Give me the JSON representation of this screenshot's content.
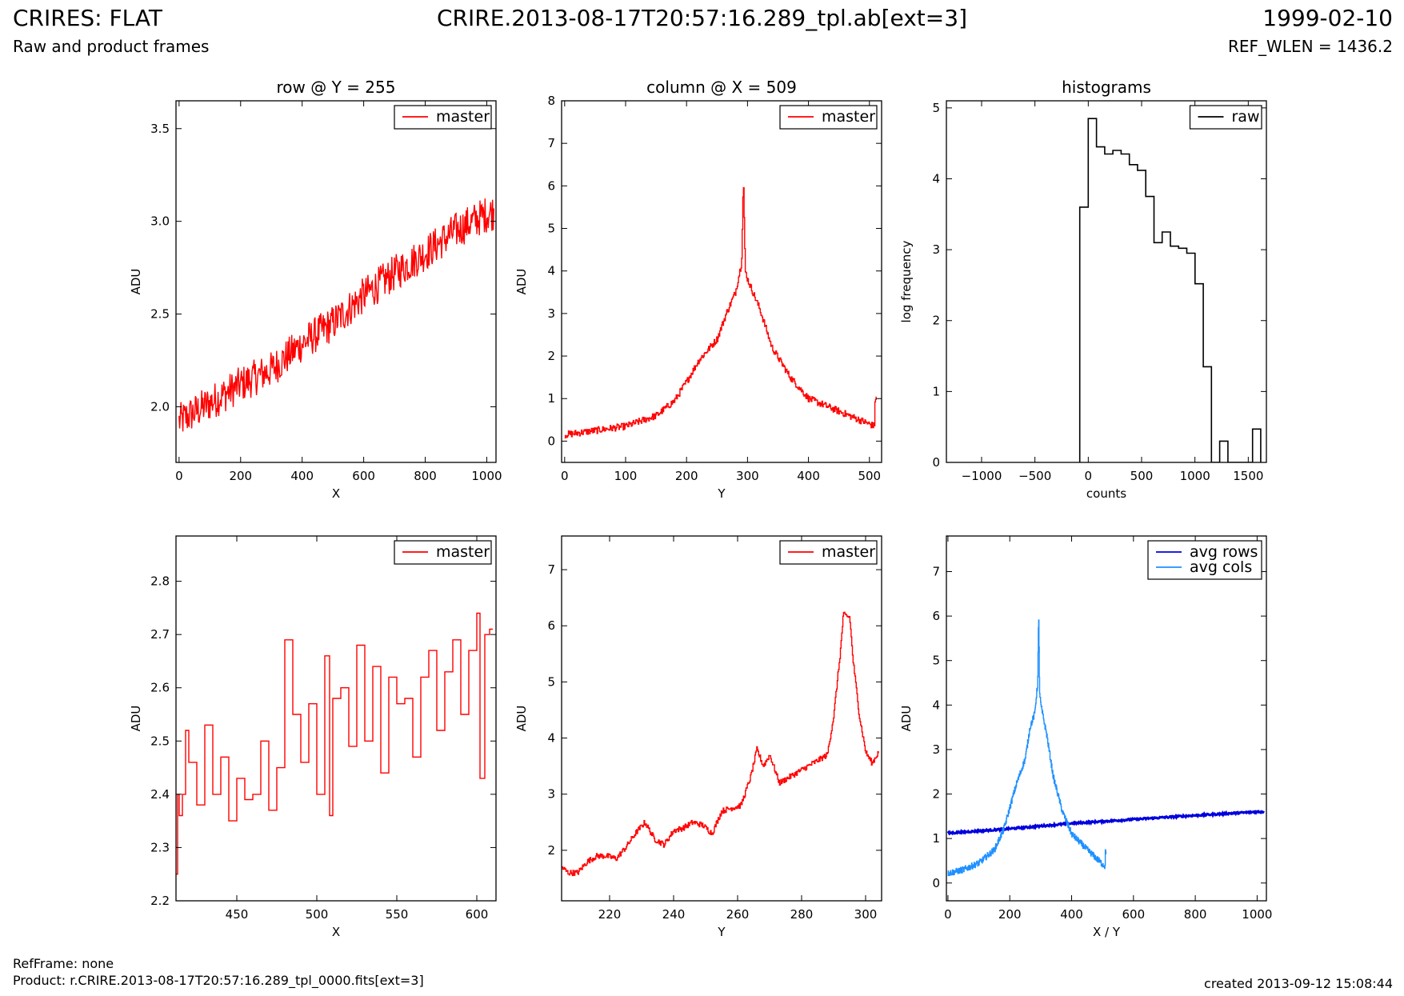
{
  "header": {
    "title": "CRIRES: FLAT",
    "subtitle": "Raw and product frames",
    "file": "CRIRE.2013-08-17T20:57:16.289_tpl.ab[ext=3]",
    "date": "1999-02-10",
    "ref_wlen": "REF_WLEN = 1436.2"
  },
  "footer": {
    "ref_frame": "RefFrame: none",
    "product": "Product: r.CRIRE.2013-08-17T20:57:16.289_tpl_0000.fits[ext=3]",
    "created": "created 2013-09-12 15:08:44"
  },
  "chart_data": [
    {
      "type": "line",
      "title": "row @ Y = 255",
      "xlabel": "X",
      "ylabel": "ADU",
      "xlim": [
        -10,
        1030
      ],
      "ylim": [
        1.7,
        3.65
      ],
      "xticks": [
        0,
        200,
        400,
        600,
        800,
        1000
      ],
      "yticks": [
        2.0,
        2.5,
        3.0,
        3.5
      ],
      "yformat": 1,
      "legend": {
        "position": "top-right",
        "entries": [
          {
            "label": "master",
            "color": "#ff0000"
          }
        ]
      },
      "series": [
        {
          "name": "master",
          "color": "#ff0000",
          "style": "noisy-line",
          "x": [
            0,
            100,
            200,
            300,
            400,
            500,
            600,
            700,
            800,
            900,
            1000,
            1023
          ],
          "values": [
            1.92,
            2.02,
            2.12,
            2.2,
            2.34,
            2.45,
            2.6,
            2.72,
            2.83,
            2.95,
            3.04,
            3.05
          ],
          "noise": 0.1
        }
      ]
    },
    {
      "type": "line",
      "title": "column @ X = 509",
      "xlabel": "Y",
      "ylabel": "ADU",
      "xlim": [
        -5,
        520
      ],
      "ylim": [
        -0.5,
        8
      ],
      "xticks": [
        0,
        100,
        200,
        300,
        400,
        500
      ],
      "yticks": [
        0,
        1,
        2,
        3,
        4,
        5,
        6,
        7,
        8
      ],
      "yformat": 0,
      "legend": {
        "position": "top-right",
        "entries": [
          {
            "label": "master",
            "color": "#ff0000"
          }
        ]
      },
      "series": [
        {
          "name": "master",
          "color": "#ff0000",
          "style": "step",
          "x": [
            0,
            50,
            100,
            150,
            180,
            200,
            220,
            250,
            265,
            280,
            290,
            293,
            296,
            300,
            320,
            340,
            370,
            400,
            450,
            500,
            508,
            509,
            511
          ],
          "values": [
            0.15,
            0.25,
            0.35,
            0.6,
            0.95,
            1.4,
            1.9,
            2.4,
            3.0,
            3.5,
            4.2,
            6.2,
            4.0,
            3.8,
            3.1,
            2.2,
            1.5,
            1.0,
            0.7,
            0.4,
            0.35,
            1.0,
            1.0
          ],
          "noise": 0.08
        }
      ]
    },
    {
      "type": "bar",
      "title": "histograms",
      "xlabel": "counts",
      "ylabel": "log frequency",
      "xlim": [
        -1330,
        1670
      ],
      "ylim": [
        0,
        5.1
      ],
      "xticks": [
        -1000,
        -500,
        0,
        500,
        1000,
        1500
      ],
      "yticks": [
        0,
        1,
        2,
        3,
        4,
        5
      ],
      "yformat": 0,
      "legend": {
        "position": "top-right",
        "entries": [
          {
            "label": "raw",
            "color": "#000000"
          }
        ]
      },
      "series": [
        {
          "name": "raw",
          "color": "#000000",
          "style": "hist",
          "edges": [
            -80,
            0,
            77,
            154,
            231,
            308,
            385,
            462,
            539,
            616,
            693,
            770,
            847,
            924,
            1001,
            1078,
            1155,
            1232,
            1309,
            1386,
            1463,
            1540,
            1617
          ],
          "values": [
            3.6,
            4.85,
            4.45,
            4.35,
            4.4,
            4.35,
            4.2,
            4.12,
            3.75,
            3.1,
            3.25,
            3.05,
            3.02,
            2.95,
            2.52,
            1.35,
            0,
            0.3,
            0,
            0,
            0,
            0.47
          ]
        }
      ]
    },
    {
      "type": "line",
      "title": "",
      "xlabel": "X",
      "ylabel": "ADU",
      "xlim": [
        412,
        612
      ],
      "ylim": [
        2.2,
        2.885
      ],
      "xticks": [
        450,
        500,
        550,
        600
      ],
      "yticks": [
        2.2,
        2.3,
        2.4,
        2.5,
        2.6,
        2.7,
        2.8
      ],
      "yformat": 1,
      "legend": {
        "position": "top-right",
        "entries": [
          {
            "label": "master",
            "color": "#ff0000"
          }
        ]
      },
      "series": [
        {
          "name": "master",
          "color": "#ff0000",
          "style": "step",
          "x": [
            412,
            413,
            414,
            416,
            418,
            420,
            425,
            430,
            435,
            440,
            445,
            450,
            455,
            460,
            465,
            470,
            475,
            480,
            485,
            490,
            495,
            500,
            505,
            508,
            510,
            515,
            520,
            525,
            530,
            535,
            540,
            545,
            550,
            555,
            560,
            565,
            570,
            575,
            580,
            585,
            590,
            595,
            600,
            602,
            605,
            608,
            610
          ],
          "values": [
            2.25,
            2.4,
            2.36,
            2.4,
            2.52,
            2.46,
            2.38,
            2.53,
            2.4,
            2.47,
            2.35,
            2.43,
            2.39,
            2.4,
            2.5,
            2.37,
            2.45,
            2.69,
            2.55,
            2.46,
            2.57,
            2.4,
            2.66,
            2.36,
            2.58,
            2.6,
            2.49,
            2.68,
            2.5,
            2.64,
            2.44,
            2.62,
            2.57,
            2.58,
            2.47,
            2.62,
            2.67,
            2.52,
            2.63,
            2.69,
            2.55,
            2.67,
            2.74,
            2.43,
            2.7,
            2.71,
            2.71
          ],
          "noise": 0
        }
      ]
    },
    {
      "type": "line",
      "title": "",
      "xlabel": "Y",
      "ylabel": "ADU",
      "xlim": [
        205,
        305
      ],
      "ylim": [
        1.1,
        7.6
      ],
      "xticks": [
        220,
        240,
        260,
        280,
        300
      ],
      "yticks": [
        2,
        3,
        4,
        5,
        6,
        7
      ],
      "yformat": 0,
      "legend": {
        "position": "top-right",
        "entries": [
          {
            "label": "master",
            "color": "#ff0000"
          }
        ]
      },
      "series": [
        {
          "name": "master",
          "color": "#ff0000",
          "style": "step",
          "x": [
            205,
            207,
            210,
            213,
            216,
            219,
            222,
            225,
            228,
            231,
            234,
            237,
            240,
            243,
            246,
            249,
            252,
            255,
            258,
            261,
            264,
            266,
            268,
            270,
            273,
            276,
            279,
            282,
            285,
            288,
            290,
            292,
            293,
            295,
            296,
            298,
            300,
            302,
            304
          ],
          "values": [
            1.7,
            1.6,
            1.6,
            1.8,
            1.9,
            1.9,
            1.85,
            2.05,
            2.3,
            2.5,
            2.2,
            2.1,
            2.35,
            2.4,
            2.5,
            2.45,
            2.3,
            2.7,
            2.75,
            2.8,
            3.3,
            3.8,
            3.5,
            3.7,
            3.2,
            3.3,
            3.4,
            3.5,
            3.6,
            3.7,
            4.4,
            5.5,
            6.2,
            6.15,
            5.4,
            4.4,
            3.75,
            3.55,
            3.75
          ],
          "noise": 0.05
        }
      ]
    },
    {
      "type": "line",
      "title": "",
      "xlabel": "X / Y",
      "ylabel": "ADU",
      "xlim": [
        -5,
        1030
      ],
      "ylim": [
        -0.4,
        7.8
      ],
      "xticks": [
        0,
        200,
        400,
        600,
        800,
        1000
      ],
      "yticks": [
        0,
        1,
        2,
        3,
        4,
        5,
        6,
        7
      ],
      "yformat": 0,
      "legend": {
        "position": "top-right",
        "entries": [
          {
            "label": "avg rows",
            "color": "#0000dd"
          },
          {
            "label": "avg cols",
            "color": "#1e90ff"
          }
        ]
      },
      "series": [
        {
          "name": "avg rows",
          "color": "#0000dd",
          "style": "noisy-line",
          "width": 3,
          "x": [
            0,
            200,
            400,
            600,
            800,
            1000,
            1023
          ],
          "values": [
            1.12,
            1.22,
            1.34,
            1.43,
            1.52,
            1.6,
            1.6
          ],
          "noise": 0.02
        },
        {
          "name": "avg cols",
          "color": "#1e90ff",
          "style": "step",
          "x": [
            0,
            50,
            100,
            150,
            180,
            200,
            220,
            250,
            265,
            280,
            290,
            293,
            296,
            300,
            320,
            340,
            370,
            400,
            450,
            500,
            508,
            509,
            511
          ],
          "values": [
            0.22,
            0.3,
            0.45,
            0.75,
            1.2,
            1.7,
            2.2,
            2.8,
            3.5,
            3.8,
            4.5,
            6.05,
            4.3,
            4.0,
            3.3,
            2.4,
            1.6,
            1.1,
            0.75,
            0.42,
            0.38,
            0.7,
            0.7
          ],
          "noise": 0.07
        }
      ]
    }
  ]
}
